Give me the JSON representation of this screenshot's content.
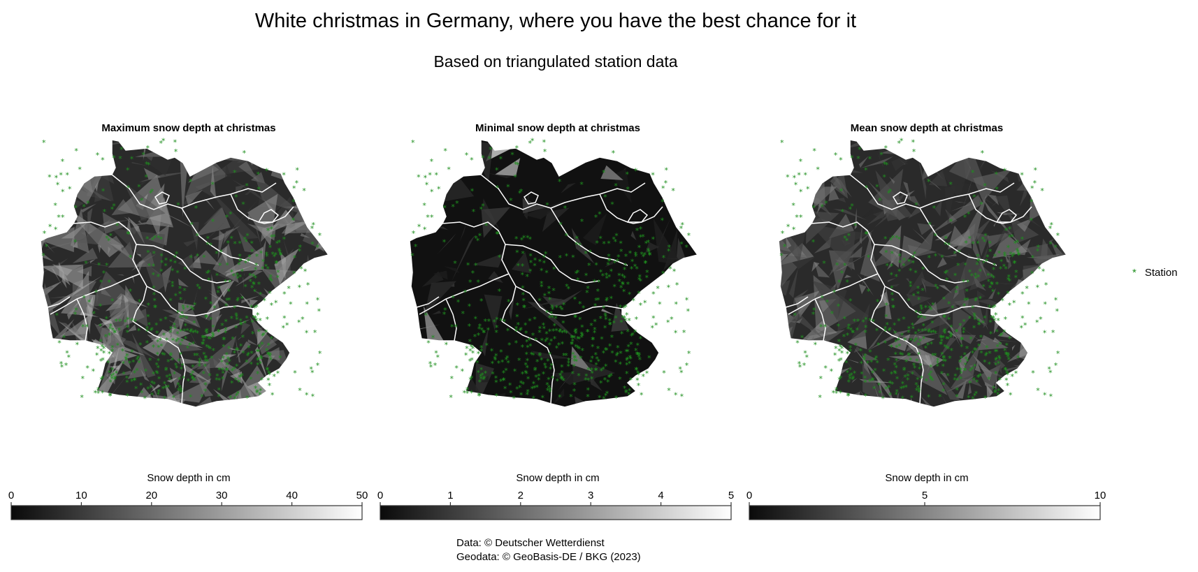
{
  "title": "White christmas in Germany, where you have the best chance for it",
  "subtitle": "Based on triangulated station data",
  "panels": [
    {
      "title": "Maximum snow depth at christmas",
      "colorbar_label": "Snow depth in cm",
      "ticks": [
        "0",
        "10",
        "20",
        "30",
        "40",
        "50"
      ],
      "range": [
        0,
        50
      ]
    },
    {
      "title": "Minimal snow depth at christmas",
      "colorbar_label": "Snow depth in cm",
      "ticks": [
        "0",
        "1",
        "2",
        "3",
        "4",
        "5"
      ],
      "range": [
        0,
        5
      ]
    },
    {
      "title": "Mean snow depth at christmas",
      "colorbar_label": "Snow depth in cm",
      "ticks": [
        "0",
        "5",
        "10"
      ],
      "range": [
        0,
        10
      ]
    }
  ],
  "legend": {
    "label": "Station",
    "marker": "*",
    "color": "#1f8f1f"
  },
  "credits": {
    "line1": "Data: © Deutscher Wetterdienst",
    "line2": "Geodata: © GeoBasis-DE / BKG (2023)"
  },
  "colors": {
    "station": "#1f8f1f",
    "borders": "#ffffff",
    "low": "#0a0a0a",
    "high": "#ffffff"
  }
}
